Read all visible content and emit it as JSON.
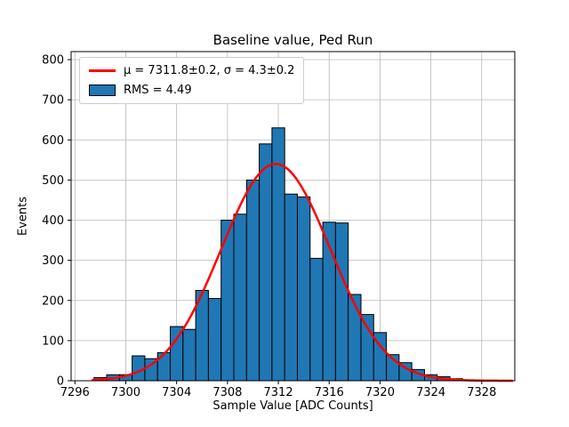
{
  "figure": {
    "title": "Baseline value, Ped Run",
    "xlabel": "Sample Value [ADC Counts]",
    "ylabel": "Events"
  },
  "legend": {
    "fit_label": "μ = 7311.8±0.2, σ = 4.3±0.2",
    "rms_label": "RMS = 4.49"
  },
  "colors": {
    "bar_fill": "#1f77b4",
    "bar_edge": "#000000",
    "fit_line": "#ff0000",
    "grid": "#b8b8b8",
    "spine": "#000000",
    "tick_text": "#000000"
  },
  "chart_data": {
    "type": "bar",
    "subtype": "histogram",
    "title": "Baseline value, Ped Run",
    "xlabel": "Sample Value [ADC Counts]",
    "ylabel": "Events",
    "bin_width": 1,
    "bin_centers": [
      7298,
      7299,
      7300,
      7301,
      7302,
      7303,
      7304,
      7305,
      7306,
      7307,
      7308,
      7309,
      7310,
      7311,
      7312,
      7313,
      7314,
      7315,
      7316,
      7317,
      7318,
      7319,
      7320,
      7321,
      7322,
      7323,
      7324,
      7325,
      7326
    ],
    "counts": [
      8,
      15,
      15,
      62,
      55,
      70,
      135,
      128,
      225,
      205,
      400,
      415,
      500,
      590,
      630,
      465,
      458,
      305,
      395,
      393,
      215,
      165,
      120,
      65,
      45,
      28,
      15,
      10,
      5
    ],
    "fit": {
      "type": "gaussian",
      "amplitude": 540,
      "mu": 7311.8,
      "sigma": 4.3,
      "x_start": 7297.4,
      "x_end": 7330.5
    },
    "xlim": [
      7295.7,
      7330.6
    ],
    "ylim": [
      0,
      820
    ],
    "xticks": [
      7296,
      7300,
      7304,
      7308,
      7312,
      7316,
      7320,
      7324,
      7328
    ],
    "yticks": [
      0,
      100,
      200,
      300,
      400,
      500,
      600,
      700,
      800
    ],
    "grid": true,
    "legend_position": "upper left",
    "legend_entries": [
      "μ = 7311.8±0.2, σ = 4.3±0.2",
      "RMS = 4.49"
    ]
  }
}
